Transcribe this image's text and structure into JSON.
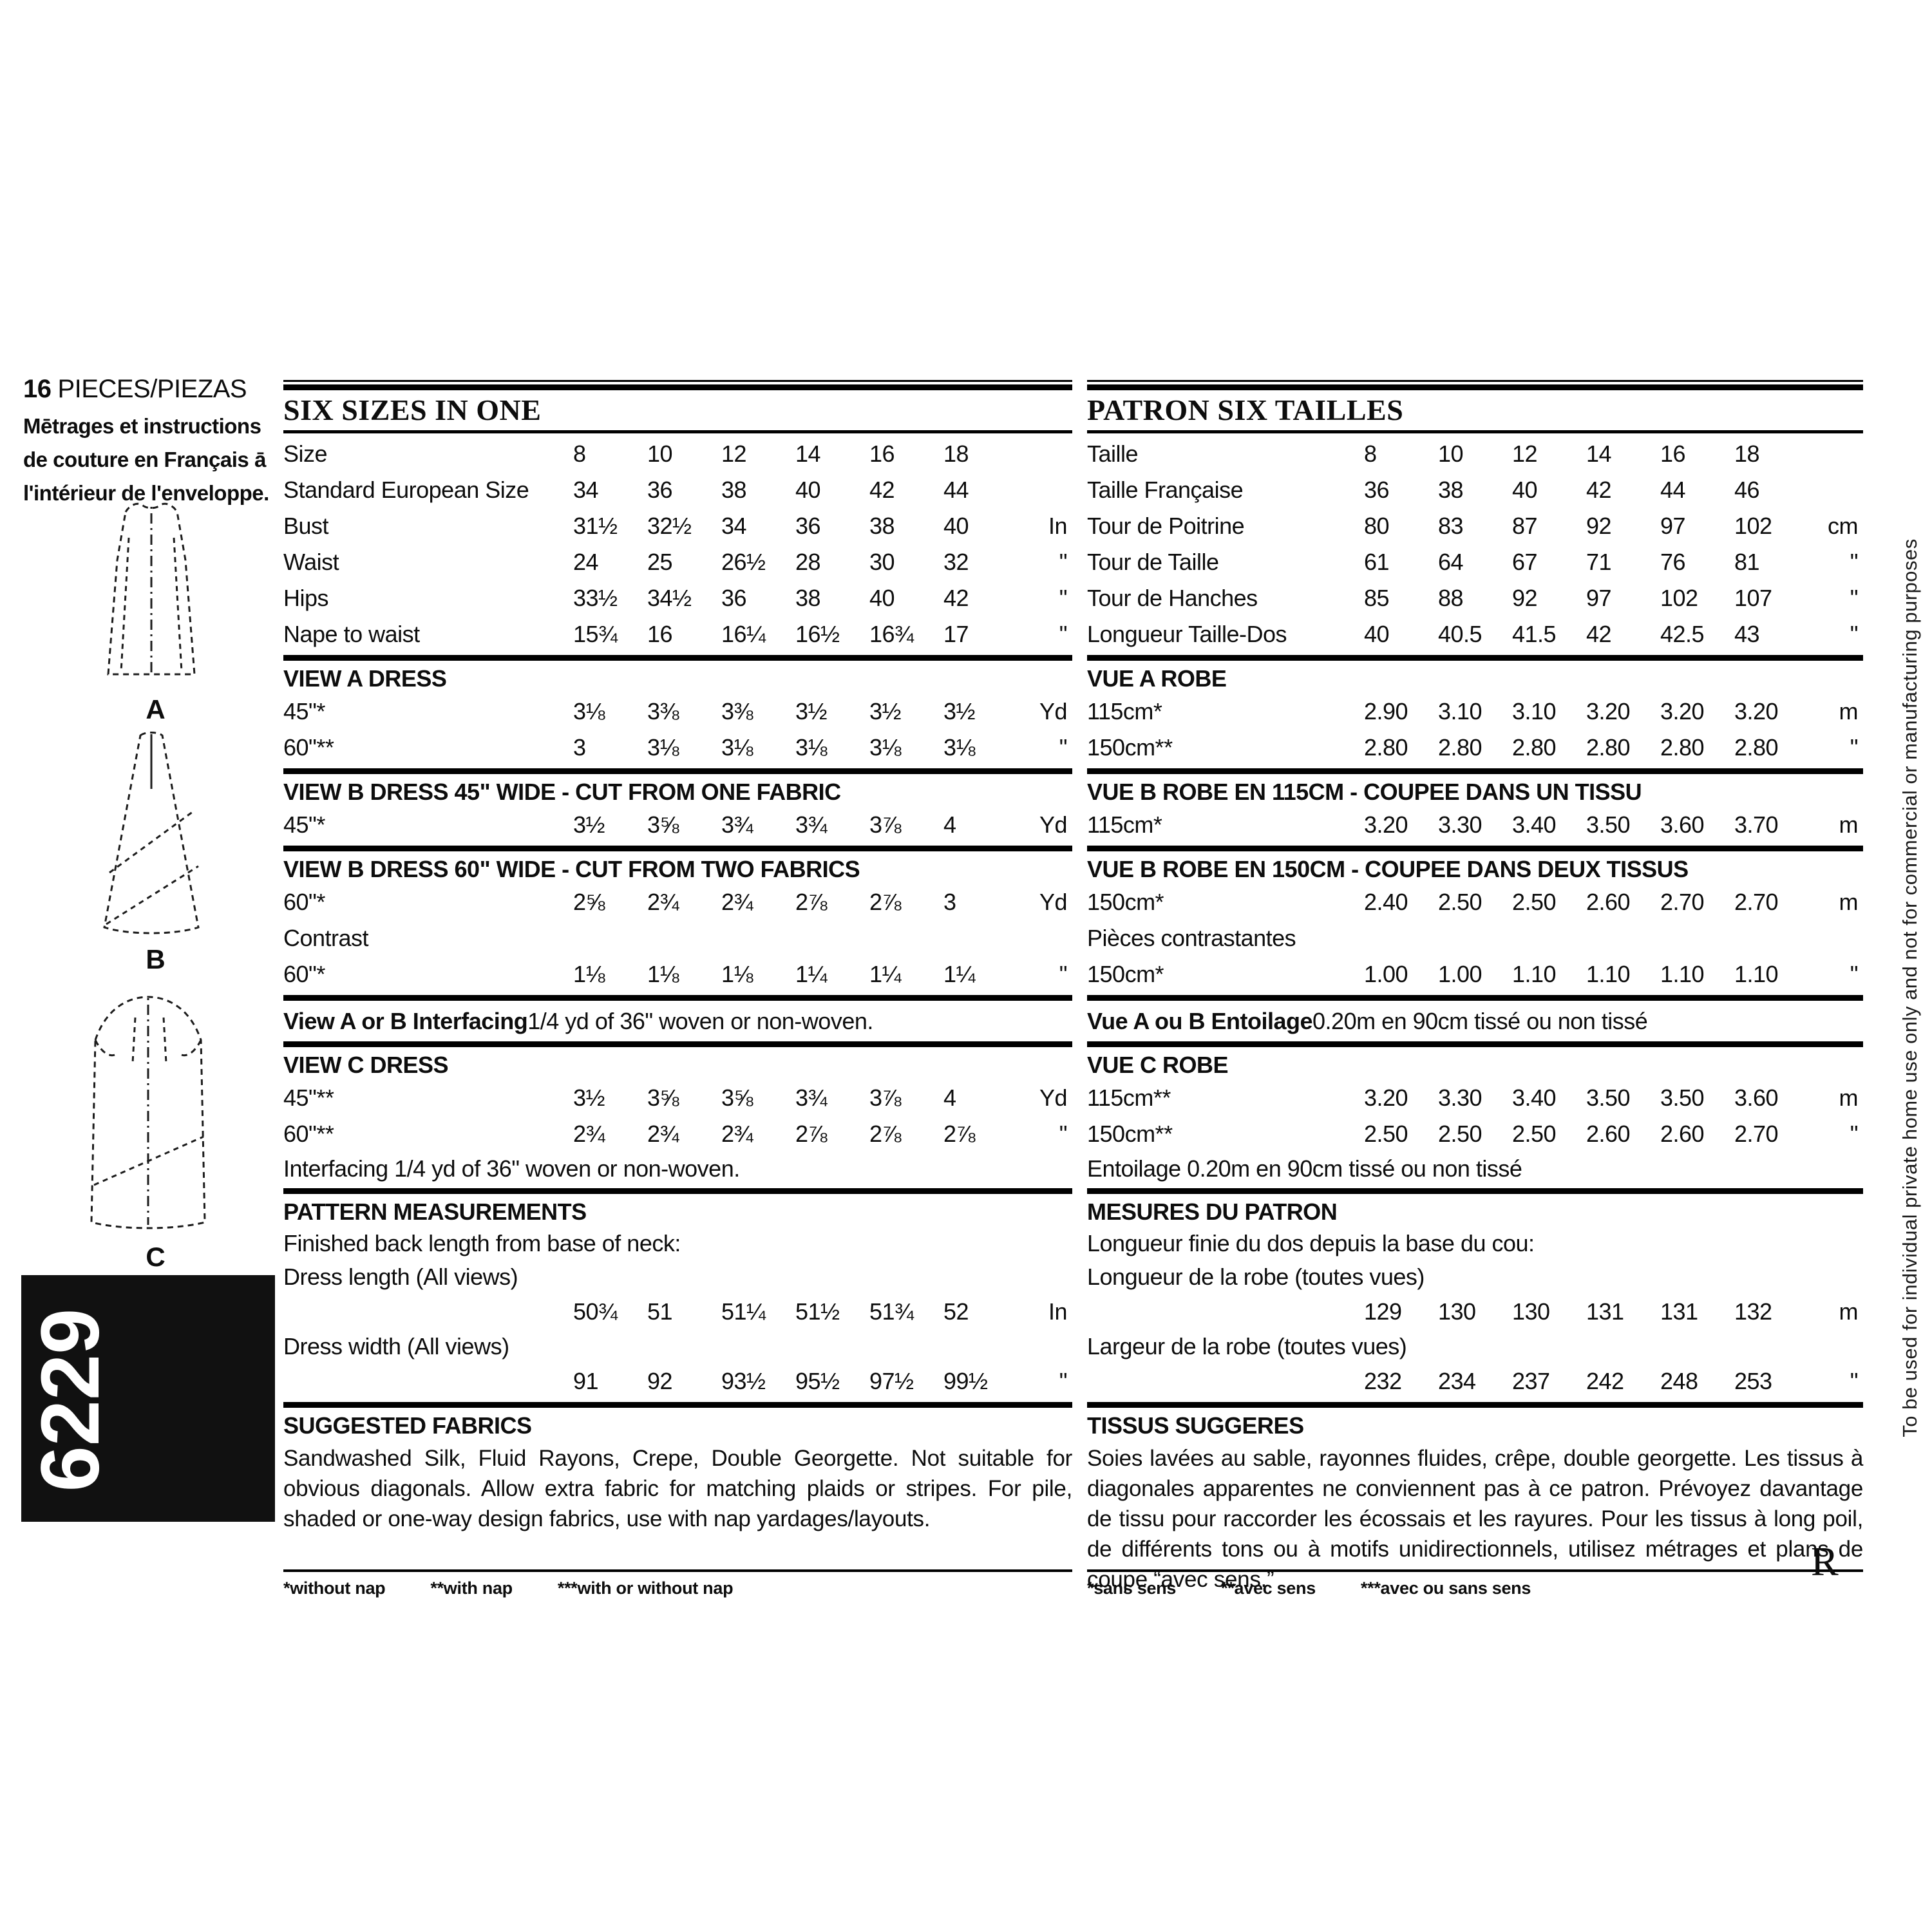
{
  "left_panel": {
    "pieces_count": "16",
    "pieces_label": "PIECES/PIEZAS",
    "french_note": [
      "Mētrages et instructions",
      "de couture en Français ā",
      "l'intérieur de l'enveloppe."
    ],
    "view_labels": [
      "A",
      "B",
      "C"
    ],
    "pattern_number": "6229"
  },
  "columns": {
    "english": {
      "title": "SIX SIZES IN ONE",
      "sections": [
        {
          "type": "rows",
          "rows": [
            {
              "label": "Size",
              "values": [
                "8",
                "10",
                "12",
                "14",
                "16",
                "18"
              ],
              "unit": ""
            },
            {
              "label": "Standard European Size",
              "values": [
                "34",
                "36",
                "38",
                "40",
                "42",
                "44"
              ],
              "unit": ""
            },
            {
              "label": "Bust",
              "values": [
                "31½",
                "32½",
                "34",
                "36",
                "38",
                "40"
              ],
              "unit": "In"
            },
            {
              "label": "Waist",
              "values": [
                "24",
                "25",
                "26½",
                "28",
                "30",
                "32"
              ],
              "unit": "\""
            },
            {
              "label": "Hips",
              "values": [
                "33½",
                "34½",
                "36",
                "38",
                "40",
                "42"
              ],
              "unit": "\""
            },
            {
              "label": "Nape to waist",
              "values": [
                "15¾",
                "16",
                "16¼",
                "16½",
                "16¾",
                "17"
              ],
              "unit": "\""
            }
          ]
        },
        {
          "type": "bar"
        },
        {
          "type": "heading",
          "text": "VIEW A DRESS"
        },
        {
          "type": "rows",
          "rows": [
            {
              "label": "45\"*",
              "values": [
                "3⅛",
                "3⅜",
                "3⅜",
                "3½",
                "3½",
                "3½"
              ],
              "unit": "Yd"
            },
            {
              "label": "60\"**",
              "values": [
                "3",
                "3⅛",
                "3⅛",
                "3⅛",
                "3⅛",
                "3⅛"
              ],
              "unit": "\""
            }
          ]
        },
        {
          "type": "bar"
        },
        {
          "type": "heading",
          "text": "VIEW B DRESS 45\" WIDE - CUT FROM ONE FABRIC"
        },
        {
          "type": "rows",
          "rows": [
            {
              "label": "45\"*",
              "values": [
                "3½",
                "3⅝",
                "3¾",
                "3¾",
                "3⅞",
                "4"
              ],
              "unit": "Yd"
            }
          ]
        },
        {
          "type": "bar"
        },
        {
          "type": "heading",
          "text": "VIEW B DRESS 60\" WIDE - CUT FROM TWO FABRICS"
        },
        {
          "type": "rows",
          "rows": [
            {
              "label": "60\"*",
              "values": [
                "2⅝",
                "2¾",
                "2¾",
                "2⅞",
                "2⅞",
                "3"
              ],
              "unit": "Yd"
            },
            {
              "label": "Contrast",
              "values": [
                "",
                "",
                "",
                "",
                "",
                ""
              ],
              "unit": ""
            },
            {
              "label": "60\"*",
              "values": [
                "1⅛",
                "1⅛",
                "1⅛",
                "1¼",
                "1¼",
                "1¼"
              ],
              "unit": "\""
            }
          ]
        },
        {
          "type": "bar"
        },
        {
          "type": "note",
          "bold": "View A or B Interfacing",
          "rest": " 1/4 yd of 36\" woven or non-woven."
        },
        {
          "type": "bar"
        },
        {
          "type": "heading",
          "text": "VIEW C DRESS"
        },
        {
          "type": "rows",
          "rows": [
            {
              "label": "45\"**",
              "values": [
                "3½",
                "3⅝",
                "3⅝",
                "3¾",
                "3⅞",
                "4"
              ],
              "unit": "Yd"
            },
            {
              "label": "60\"**",
              "values": [
                "2¾",
                "2¾",
                "2¾",
                "2⅞",
                "2⅞",
                "2⅞"
              ],
              "unit": "\""
            }
          ]
        },
        {
          "type": "text",
          "text": "Interfacing 1/4 yd of 36\" woven or non-woven."
        },
        {
          "type": "bar"
        },
        {
          "type": "heading",
          "text": "PATTERN MEASUREMENTS"
        },
        {
          "type": "text",
          "text": "Finished back length from base of neck:"
        },
        {
          "type": "text",
          "text": "Dress length (All views)"
        },
        {
          "type": "rows",
          "rows": [
            {
              "label": "",
              "values": [
                "50¾",
                "51",
                "51¼",
                "51½",
                "51¾",
                "52"
              ],
              "unit": "In"
            }
          ]
        },
        {
          "type": "text",
          "text": "Dress width (All views)"
        },
        {
          "type": "rows",
          "rows": [
            {
              "label": "",
              "values": [
                "91",
                "92",
                "93½",
                "95½",
                "97½",
                "99½"
              ],
              "unit": "\""
            }
          ]
        },
        {
          "type": "bar"
        },
        {
          "type": "heading",
          "text": "SUGGESTED FABRICS"
        },
        {
          "type": "para",
          "text": "Sandwashed Silk, Fluid Rayons, Crepe, Double Georgette. Not suitable for obvious diagonals. Allow extra fabric for matching plaids or stripes. For pile, shaded or one-way design fabrics, use with nap yardages/layouts."
        },
        {
          "type": "thinrule"
        }
      ],
      "footnote": [
        "*without nap",
        "**with nap",
        "***with or without nap"
      ]
    },
    "french": {
      "title": "PATRON SIX TAILLES",
      "sections": [
        {
          "type": "rows",
          "rows": [
            {
              "label": "Taille",
              "values": [
                "8",
                "10",
                "12",
                "14",
                "16",
                "18"
              ],
              "unit": ""
            },
            {
              "label": "Taille Française",
              "values": [
                "36",
                "38",
                "40",
                "42",
                "44",
                "46"
              ],
              "unit": ""
            },
            {
              "label": "Tour de Poitrine",
              "values": [
                "80",
                "83",
                "87",
                "92",
                "97",
                "102"
              ],
              "unit": "cm"
            },
            {
              "label": "Tour de Taille",
              "values": [
                "61",
                "64",
                "67",
                "71",
                "76",
                "81"
              ],
              "unit": "\""
            },
            {
              "label": "Tour de Hanches",
              "values": [
                "85",
                "88",
                "92",
                "97",
                "102",
                "107"
              ],
              "unit": "\""
            },
            {
              "label": "Longueur Taille-Dos",
              "values": [
                "40",
                "40.5",
                "41.5",
                "42",
                "42.5",
                "43"
              ],
              "unit": "\""
            }
          ]
        },
        {
          "type": "bar"
        },
        {
          "type": "heading",
          "text": "VUE A ROBE"
        },
        {
          "type": "rows",
          "rows": [
            {
              "label": "115cm*",
              "values": [
                "2.90",
                "3.10",
                "3.10",
                "3.20",
                "3.20",
                "3.20"
              ],
              "unit": "m"
            },
            {
              "label": "150cm**",
              "values": [
                "2.80",
                "2.80",
                "2.80",
                "2.80",
                "2.80",
                "2.80"
              ],
              "unit": "\""
            }
          ]
        },
        {
          "type": "bar"
        },
        {
          "type": "heading",
          "text": "VUE B ROBE EN 115CM - COUPEE DANS UN TISSU"
        },
        {
          "type": "rows",
          "rows": [
            {
              "label": "115cm*",
              "values": [
                "3.20",
                "3.30",
                "3.40",
                "3.50",
                "3.60",
                "3.70"
              ],
              "unit": "m"
            }
          ]
        },
        {
          "type": "bar"
        },
        {
          "type": "heading",
          "text": "VUE B ROBE EN 150CM - COUPEE DANS DEUX TISSUS"
        },
        {
          "type": "rows",
          "rows": [
            {
              "label": "150cm*",
              "values": [
                "2.40",
                "2.50",
                "2.50",
                "2.60",
                "2.70",
                "2.70"
              ],
              "unit": "m"
            },
            {
              "label": "Pièces contrastantes",
              "values": [
                "",
                "",
                "",
                "",
                "",
                ""
              ],
              "unit": ""
            },
            {
              "label": "150cm*",
              "values": [
                "1.00",
                "1.00",
                "1.10",
                "1.10",
                "1.10",
                "1.10"
              ],
              "unit": "\""
            }
          ]
        },
        {
          "type": "bar"
        },
        {
          "type": "note",
          "bold": "Vue A ou B Entoilage",
          "rest": " 0.20m en 90cm tissé ou non tissé"
        },
        {
          "type": "bar"
        },
        {
          "type": "heading",
          "text": "VUE C ROBE"
        },
        {
          "type": "rows",
          "rows": [
            {
              "label": "115cm**",
              "values": [
                "3.20",
                "3.30",
                "3.40",
                "3.50",
                "3.50",
                "3.60"
              ],
              "unit": "m"
            },
            {
              "label": "150cm**",
              "values": [
                "2.50",
                "2.50",
                "2.50",
                "2.60",
                "2.60",
                "2.70"
              ],
              "unit": "\""
            }
          ]
        },
        {
          "type": "text",
          "text": "Entoilage 0.20m en 90cm tissé ou non tissé"
        },
        {
          "type": "bar"
        },
        {
          "type": "heading",
          "text": "MESURES DU PATRON"
        },
        {
          "type": "text",
          "text": "Longueur finie du dos depuis la base du cou:"
        },
        {
          "type": "text",
          "text": "Longueur de la robe (toutes vues)"
        },
        {
          "type": "rows",
          "rows": [
            {
              "label": "",
              "values": [
                "129",
                "130",
                "130",
                "131",
                "131",
                "132"
              ],
              "unit": "m"
            }
          ]
        },
        {
          "type": "text",
          "text": "Largeur de la robe (toutes vues)"
        },
        {
          "type": "rows",
          "rows": [
            {
              "label": "",
              "values": [
                "232",
                "234",
                "237",
                "242",
                "248",
                "253"
              ],
              "unit": "\""
            }
          ]
        },
        {
          "type": "bar"
        },
        {
          "type": "heading",
          "text": "TISSUS SUGGERES"
        },
        {
          "type": "para",
          "text": "Soies lavées au sable, rayonnes fluides, crêpe, double georgette. Les tissus à diagonales apparentes ne conviennent pas à ce patron. Prévoyez davantage de tissu pour raccorder les écossais et les rayures. Pour les tissus à long poil, de différents tons ou à motifs unidirectionnels, utilisez métrages et plans de coupe “avec sens.”"
        },
        {
          "type": "thinrule"
        }
      ],
      "footnote": [
        "*sans sens",
        "**avec sens",
        "***avec ou sans sens"
      ]
    }
  },
  "side_note": "To be used for individual private home use only and not for commercial or manufacturing purposes",
  "corner_mark": "R"
}
